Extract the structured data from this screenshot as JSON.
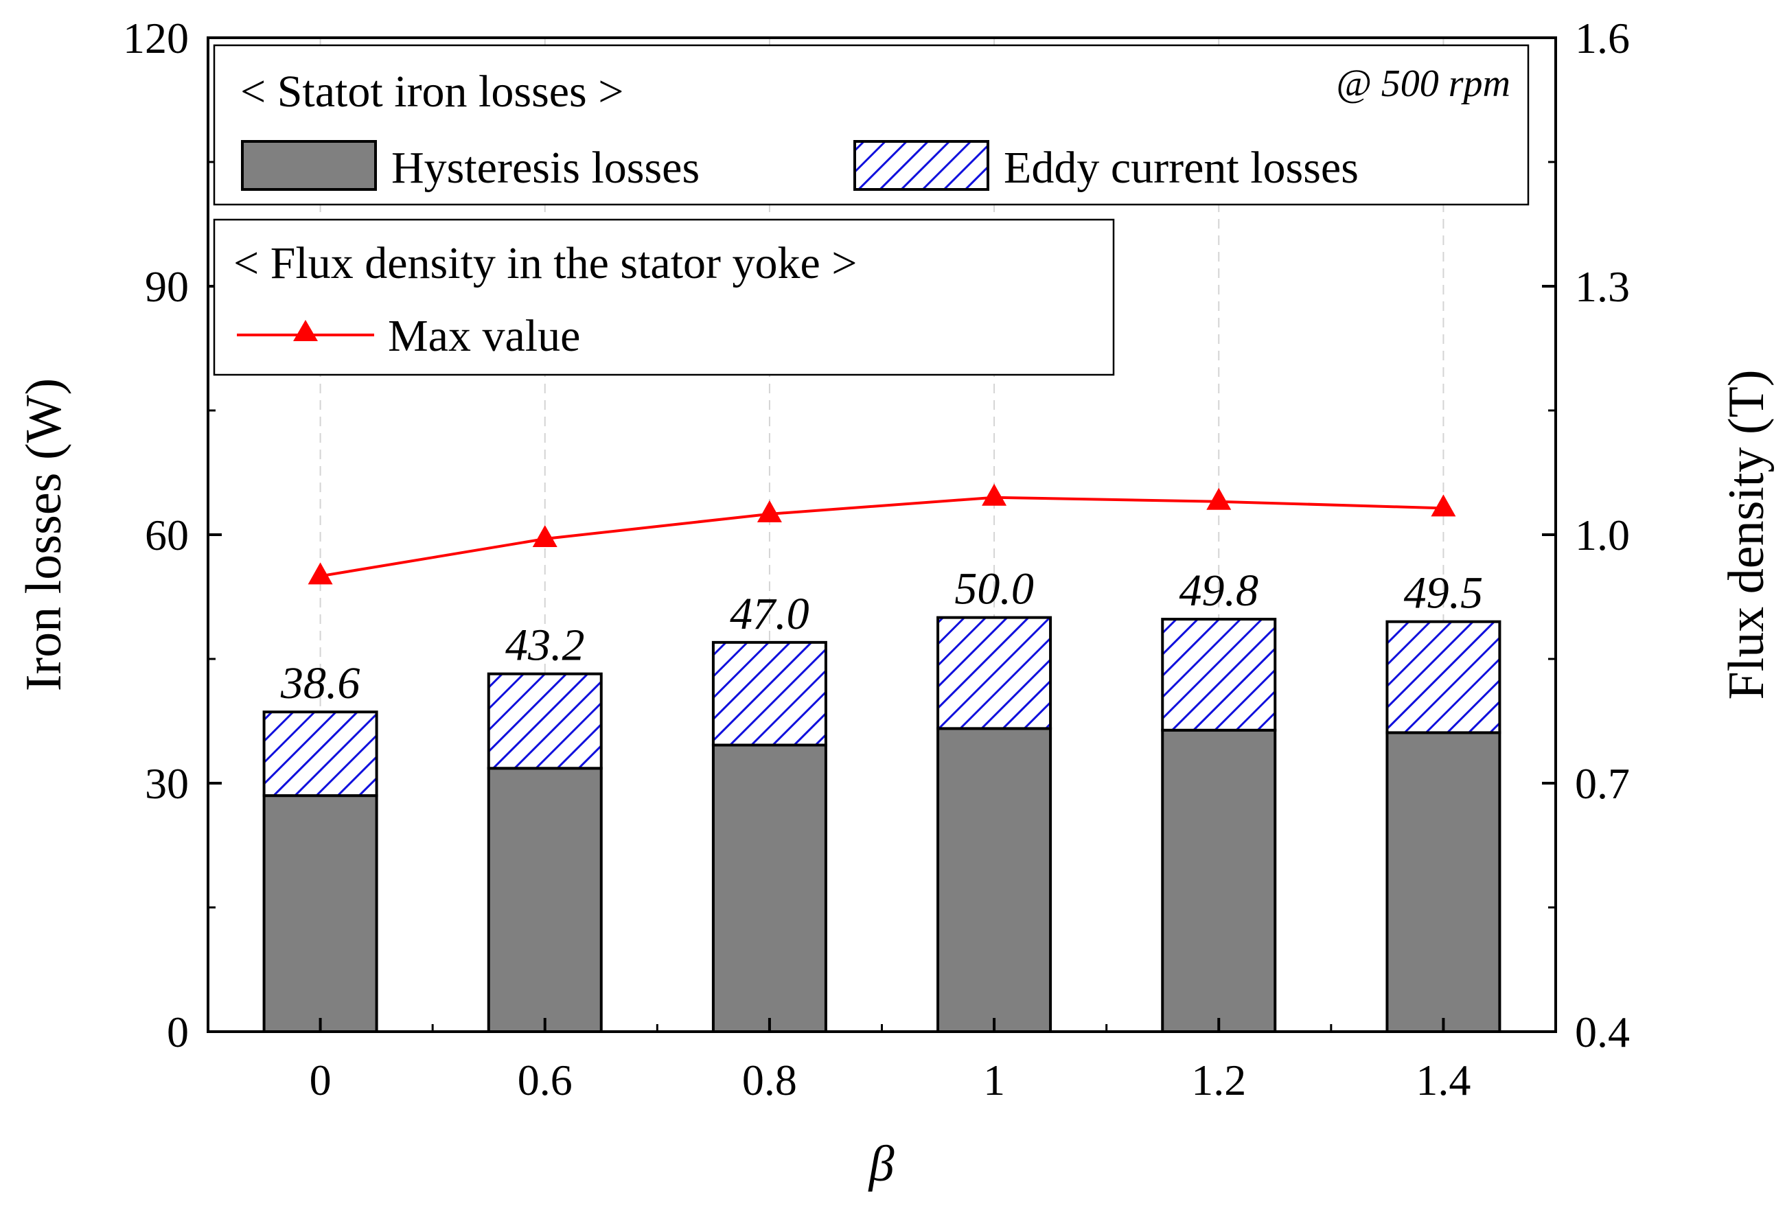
{
  "chart_data": {
    "type": "bar",
    "subtype": "stacked-bar-with-line-secondary-axis",
    "categories": [
      "0",
      "0.6",
      "0.8",
      "1",
      "1.2",
      "1.4"
    ],
    "series": [
      {
        "name": "Hysteresis losses",
        "axis": "left",
        "kind": "bar",
        "color": "#808080",
        "values": [
          28.5,
          31.8,
          34.6,
          36.6,
          36.4,
          36.1
        ]
      },
      {
        "name": "Eddy current losses",
        "axis": "left",
        "kind": "bar-hatched",
        "color": "#1010dd",
        "values": [
          10.1,
          11.4,
          12.4,
          13.4,
          13.4,
          13.4
        ]
      },
      {
        "name": "Max value",
        "axis": "right",
        "kind": "line",
        "color": "#ff0000",
        "marker": "triangle",
        "values": [
          0.95,
          0.995,
          1.025,
          1.045,
          1.04,
          1.032
        ]
      }
    ],
    "totals": [
      "38.6",
      "43.2",
      "47.0",
      "50.0",
      "49.8",
      "49.5"
    ],
    "title": "",
    "xlabel": "β",
    "ylabel": "Iron losses (W)",
    "y2label": "Flux density (T)",
    "ylim": [
      0,
      120
    ],
    "y2lim": [
      0.4,
      1.6
    ],
    "yticks": [
      "0",
      "30",
      "60",
      "90",
      "120"
    ],
    "y2ticks": [
      "0.4",
      "0.7",
      "1.0",
      "1.3",
      "1.6"
    ],
    "grid": "vertical-dashed"
  },
  "legend": {
    "losses_header": "< Statot iron losses >",
    "hysteresis_label": "Hysteresis losses",
    "eddy_label": "Eddy current losses",
    "flux_header": "< Flux density in the stator yoke >",
    "max_label": "Max value"
  },
  "annotation": "@ 500 rpm"
}
